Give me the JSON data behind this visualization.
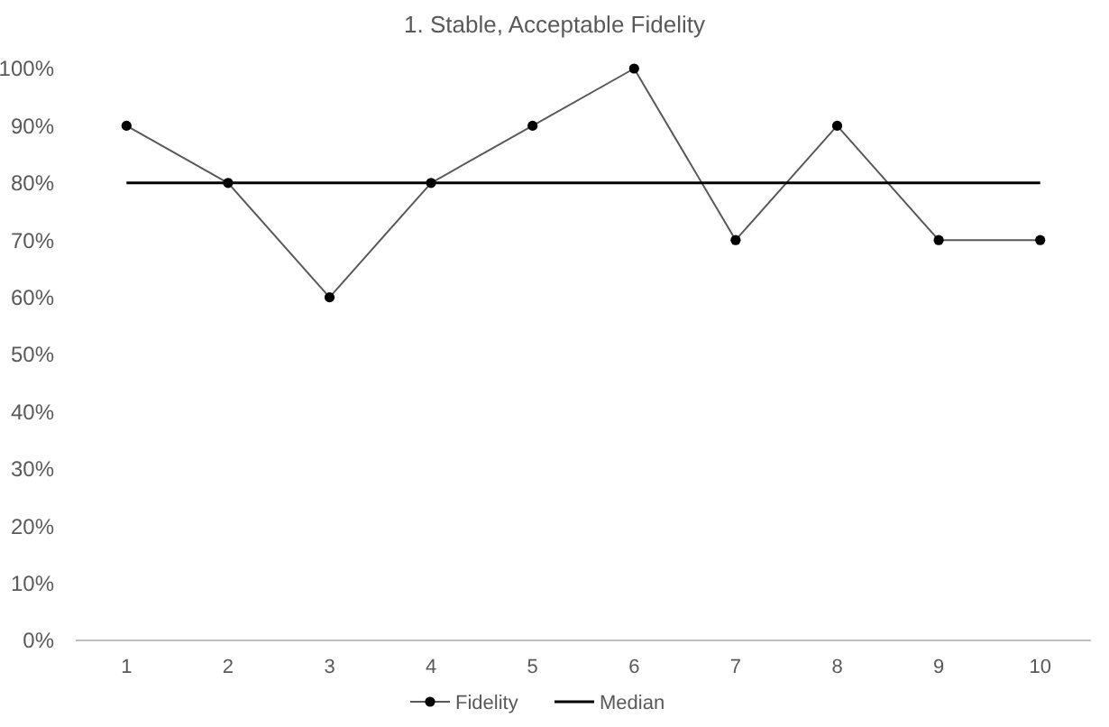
{
  "chart_data": {
    "type": "line",
    "title": "1. Stable, Acceptable Fidelity",
    "categories": [
      "1",
      "2",
      "3",
      "4",
      "5",
      "6",
      "7",
      "8",
      "9",
      "10"
    ],
    "series": [
      {
        "name": "Fidelity",
        "color": "#000000",
        "marker": "circle",
        "values": [
          90,
          80,
          60,
          80,
          90,
          100,
          70,
          90,
          70,
          70
        ]
      },
      {
        "name": "Median",
        "color": "#000000",
        "marker": "none",
        "values": [
          80,
          80,
          80,
          80,
          80,
          80,
          80,
          80,
          80,
          80
        ]
      }
    ],
    "ylim": [
      0,
      100
    ],
    "yticks": [
      {
        "value": 0,
        "label": "0%"
      },
      {
        "value": 10,
        "label": "10%"
      },
      {
        "value": 20,
        "label": "20%"
      },
      {
        "value": 30,
        "label": "30%"
      },
      {
        "value": 40,
        "label": "40%"
      },
      {
        "value": 50,
        "label": "50%"
      },
      {
        "value": 60,
        "label": "60%"
      },
      {
        "value": 70,
        "label": "70%"
      },
      {
        "value": 80,
        "label": "80%"
      },
      {
        "value": 90,
        "label": "90%"
      },
      {
        "value": 100,
        "label": "100%"
      }
    ],
    "grid": false,
    "legend": "bottom"
  }
}
